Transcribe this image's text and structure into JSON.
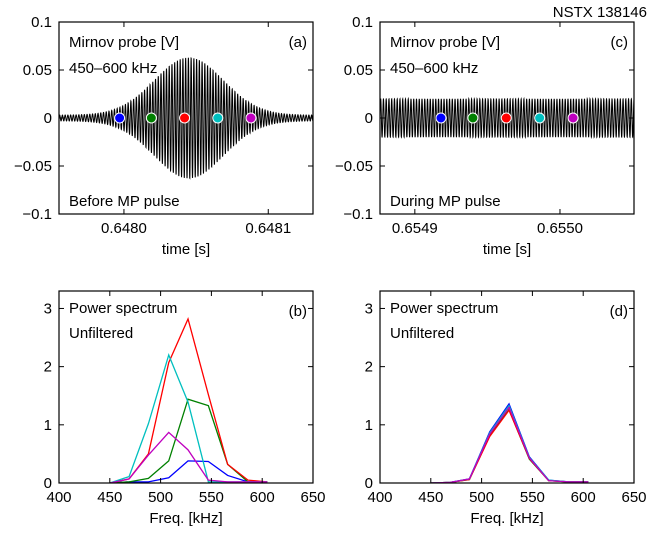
{
  "figure_label": "NSTX 138146",
  "chart_data": [
    {
      "panel": "a",
      "type": "line",
      "panel_label": "(a)",
      "annotations": [
        "Mirnov probe [V]",
        "450–600 kHz",
        "Before MP pulse"
      ],
      "xlabel": "time [s]",
      "ylabel": "",
      "xlim": [
        0.647955,
        0.648131
      ],
      "ylim": [
        -0.1,
        0.1
      ],
      "x_ticks": [
        0.648,
        0.6481
      ],
      "x_tick_labels": [
        "0.6480",
        "0.6481"
      ],
      "y_ticks": [
        -0.1,
        -0.05,
        0,
        0.05,
        0.1
      ],
      "y_tick_labels": [
        "−0.1",
        "−0.05",
        "0",
        "0.05",
        "0.1"
      ],
      "signal": {
        "description": "oscillating probe signal with Gaussian envelope",
        "frequency_khz": 527,
        "envelope_peak_time": 0.648045,
        "envelope_peak_amplitude": 0.06,
        "envelope_width_s": 2.4e-05,
        "baseline_amplitude": 0.003
      },
      "markers": [
        {
          "x": 0.647997,
          "y": 0,
          "color": "#0000ff"
        },
        {
          "x": 0.648019,
          "y": 0,
          "color": "#008000"
        },
        {
          "x": 0.648042,
          "y": 0,
          "color": "#ff0000"
        },
        {
          "x": 0.648065,
          "y": 0,
          "color": "#00bfbf"
        },
        {
          "x": 0.648088,
          "y": 0,
          "color": "#bf00bf"
        }
      ],
      "grid": false
    },
    {
      "panel": "c",
      "type": "line",
      "panel_label": "(c)",
      "annotations": [
        "Mirnov probe [V]",
        "450–600 kHz",
        "During MP pulse"
      ],
      "xlabel": "time [s]",
      "ylabel": "",
      "xlim": [
        0.654876,
        0.655051
      ],
      "ylim": [
        -0.1,
        0.1
      ],
      "x_ticks": [
        0.6549,
        0.655
      ],
      "x_tick_labels": [
        "0.6549",
        "0.6550"
      ],
      "y_ticks": [
        -0.1,
        -0.05,
        0,
        0.05,
        0.1
      ],
      "y_tick_labels": [
        "−0.1",
        "−0.05",
        "0",
        "0.05",
        "0.1"
      ],
      "signal": {
        "description": "oscillating probe signal with constant envelope",
        "frequency_khz": 527,
        "amplitude": 0.02
      },
      "markers": [
        {
          "x": 0.654918,
          "y": 0,
          "color": "#0000ff"
        },
        {
          "x": 0.65494,
          "y": 0,
          "color": "#008000"
        },
        {
          "x": 0.654963,
          "y": 0,
          "color": "#ff0000"
        },
        {
          "x": 0.654986,
          "y": 0,
          "color": "#00bfbf"
        },
        {
          "x": 0.655009,
          "y": 0,
          "color": "#bf00bf"
        }
      ],
      "grid": false
    },
    {
      "panel": "b",
      "type": "line",
      "panel_label": "(b)",
      "annotations": [
        "Power spectrum",
        "Unfiltered"
      ],
      "xlabel": "Freq. [kHz]",
      "ylabel": "",
      "xlim": [
        400,
        650
      ],
      "ylim": [
        0,
        3.3
      ],
      "x_ticks": [
        400,
        450,
        500,
        550,
        600,
        650
      ],
      "y_ticks": [
        0,
        1,
        2,
        3
      ],
      "x": [
        450,
        469,
        488,
        508,
        527,
        547,
        566,
        586,
        605
      ],
      "series": [
        {
          "color": "#0000ff",
          "values": [
            0,
            0.02,
            0.02,
            0.09,
            0.38,
            0.37,
            0.13,
            0.02,
            0.02
          ]
        },
        {
          "color": "#008000",
          "values": [
            0,
            0.02,
            0.08,
            0.38,
            1.44,
            1.33,
            0.32,
            0.02,
            0.02
          ]
        },
        {
          "color": "#ff0000",
          "values": [
            0,
            0.07,
            0.5,
            2.07,
            2.82,
            1.52,
            0.32,
            0.05,
            0.02
          ]
        },
        {
          "color": "#00bfbf",
          "values": [
            0,
            0.11,
            1.02,
            2.2,
            1.39,
            0.02,
            0.02,
            0.02,
            0.02
          ]
        },
        {
          "color": "#bf00bf",
          "values": [
            0,
            0.07,
            0.48,
            0.87,
            0.57,
            0.05,
            0.02,
            0.02,
            0.02
          ]
        }
      ],
      "grid": false
    },
    {
      "panel": "d",
      "type": "line",
      "panel_label": "(d)",
      "annotations": [
        "Power spectrum",
        "Unfiltered"
      ],
      "xlabel": "Freq. [kHz]",
      "ylabel": "",
      "xlim": [
        400,
        650
      ],
      "ylim": [
        0,
        3.3
      ],
      "x_ticks": [
        400,
        450,
        500,
        550,
        600,
        650
      ],
      "y_ticks": [
        0,
        1,
        2,
        3
      ],
      "x": [
        450,
        469,
        488,
        508,
        527,
        547,
        566,
        586,
        605
      ],
      "series": [
        {
          "color": "#0000ff",
          "values": [
            0,
            0.01,
            0.07,
            0.88,
            1.36,
            0.45,
            0.05,
            0.02,
            0.02
          ]
        },
        {
          "color": "#008000",
          "values": [
            0,
            0.01,
            0.06,
            0.82,
            1.26,
            0.41,
            0.04,
            0.02,
            0.02
          ]
        },
        {
          "color": "#ff0000",
          "values": [
            0,
            0.01,
            0.06,
            0.8,
            1.25,
            0.42,
            0.04,
            0.02,
            0.02
          ]
        },
        {
          "color": "#00bfbf",
          "values": [
            0,
            0.01,
            0.07,
            0.86,
            1.33,
            0.44,
            0.05,
            0.02,
            0.02
          ]
        },
        {
          "color": "#bf00bf",
          "values": [
            0,
            0.01,
            0.07,
            0.84,
            1.3,
            0.43,
            0.04,
            0.02,
            0.02
          ]
        }
      ],
      "grid": false
    }
  ]
}
